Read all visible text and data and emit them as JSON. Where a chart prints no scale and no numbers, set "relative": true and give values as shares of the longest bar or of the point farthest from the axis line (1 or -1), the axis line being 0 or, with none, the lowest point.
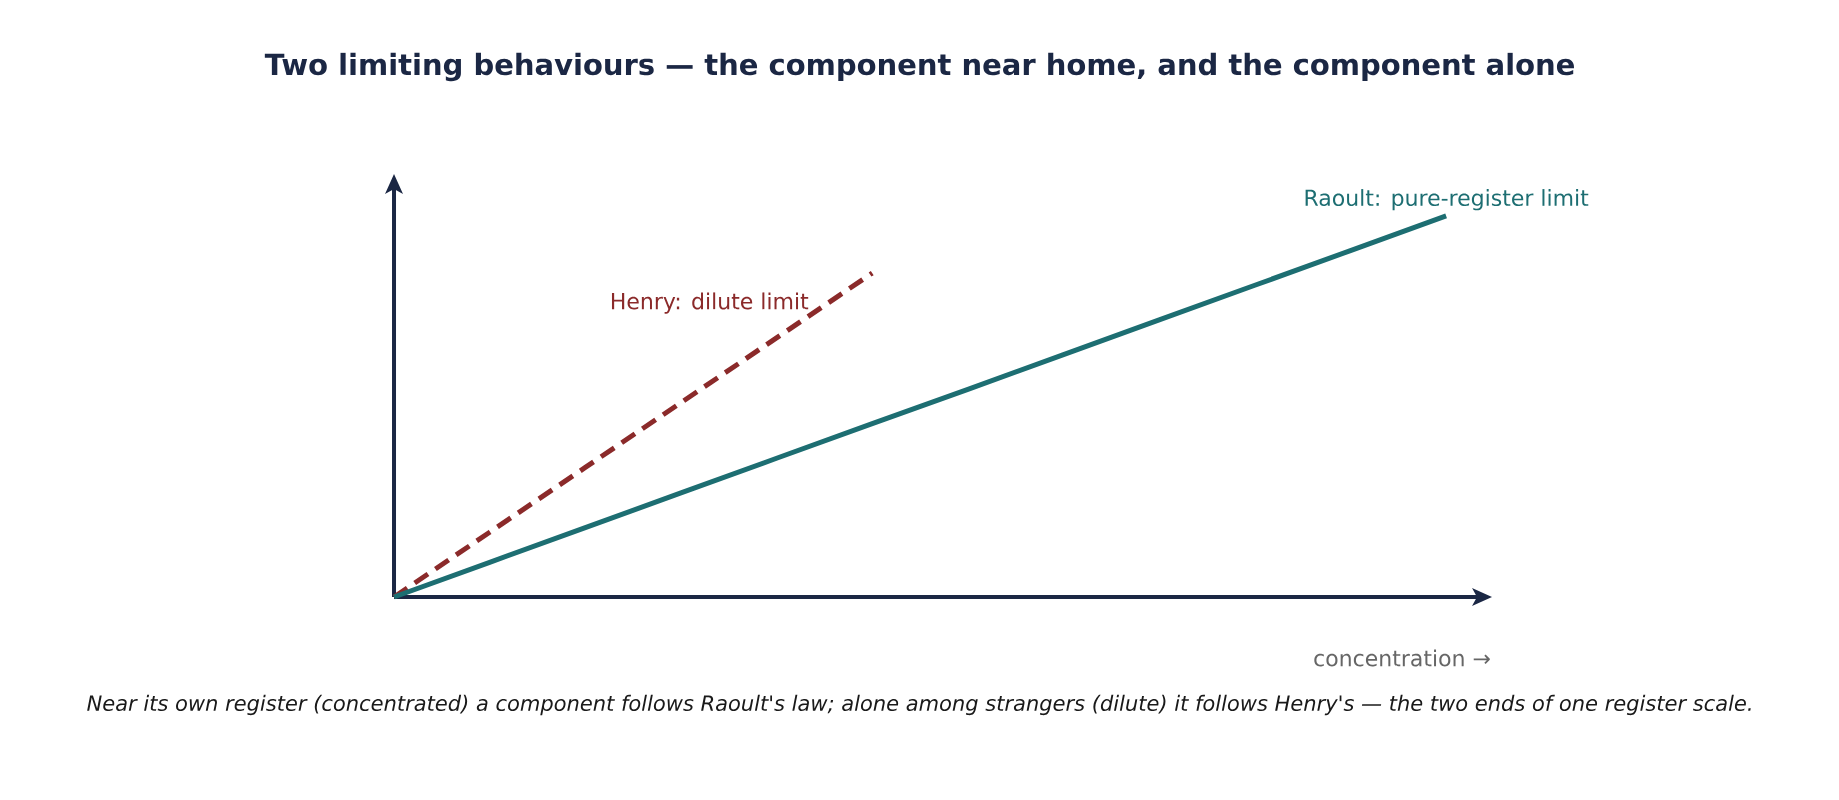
{
  "chart_data": {
    "type": "line",
    "relative": true,
    "title": "Two limiting behaviours — the component near home, and the component alone",
    "xlabel": "concentration →",
    "annotations": [
      "Near its own register (concentrated) a component follows Raoult's law; alone among strangers (dilute) it follows Henry's — the two ends of one register scale."
    ],
    "categories": [
      null,
      null,
      null,
      null,
      null,
      null,
      null,
      null,
      null,
      null,
      null,
      null
    ],
    "series": [
      {
        "name": "Henry: dilute limit",
        "color": "#8b2a2a",
        "line_style": "dashed",
        "values": [
          0,
          0.17,
          0.34,
          0.51,
          0.68,
          0.85,
          null,
          null,
          null,
          null,
          null,
          null
        ]
      },
      {
        "name": "Raoult: pure-register limit",
        "color": "#1d6e72",
        "line_style": "solid",
        "values": [
          0,
          0.091,
          0.182,
          0.273,
          0.364,
          0.455,
          0.545,
          0.636,
          0.727,
          0.818,
          0.909,
          1
        ]
      }
    ]
  }
}
